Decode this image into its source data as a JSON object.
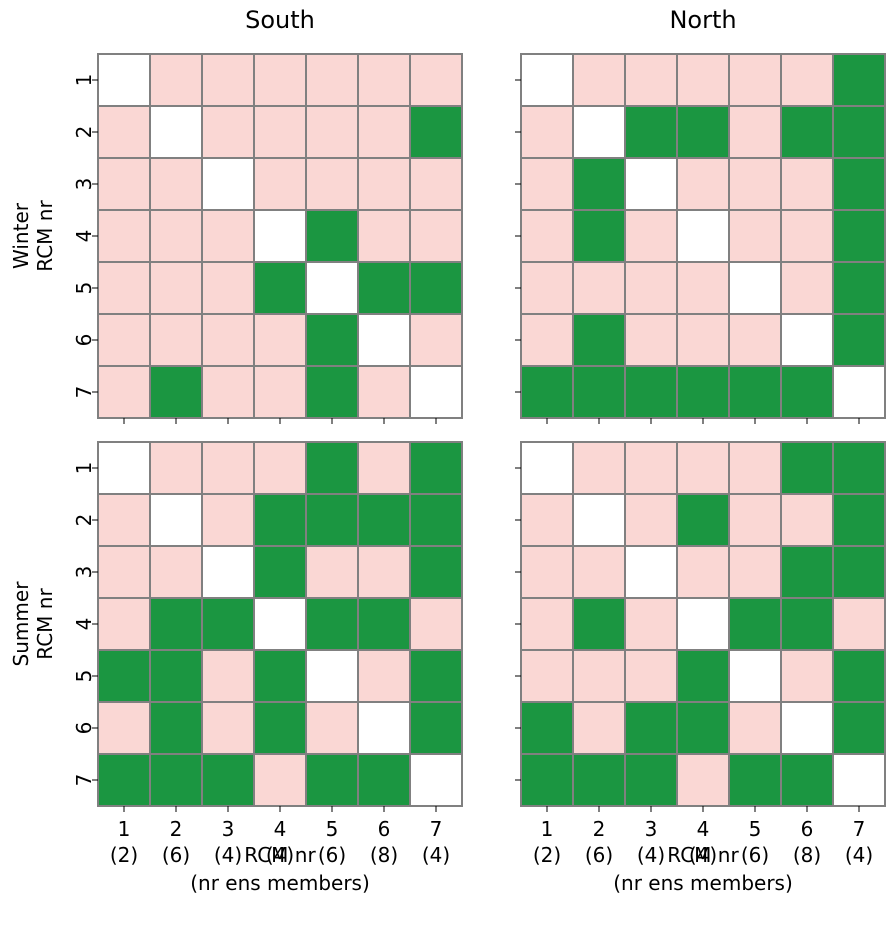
{
  "chart_data": {
    "type": "heatmap",
    "row_labels": [
      "Winter\nRCM nr",
      "Summer\nRCM nr"
    ],
    "col_titles": [
      "South",
      "North"
    ],
    "x_tick_labels": [
      "1",
      "2",
      "3",
      "4",
      "5",
      "6",
      "7"
    ],
    "x_tick_sublabels": [
      "(2)",
      "(6)",
      "(4)",
      "(4)",
      "(6)",
      "(8)",
      "(4)"
    ],
    "y_tick_labels": [
      "1",
      "2",
      "3",
      "4",
      "5",
      "6",
      "7"
    ],
    "xlabel": "RCM nr\n(nr ens members)",
    "category_colors": {
      "0": "#ffffff",
      "1": "#fad7d4",
      "2": "#1b9641"
    },
    "grid_color": "#808080",
    "panels": [
      {
        "row": "Winter",
        "column": "South",
        "matrix": [
          [
            0,
            1,
            1,
            1,
            1,
            1,
            1
          ],
          [
            1,
            0,
            1,
            1,
            1,
            1,
            2
          ],
          [
            1,
            1,
            0,
            1,
            1,
            1,
            1
          ],
          [
            1,
            1,
            1,
            0,
            2,
            1,
            1
          ],
          [
            1,
            1,
            1,
            2,
            0,
            2,
            2
          ],
          [
            1,
            1,
            1,
            1,
            2,
            0,
            1
          ],
          [
            1,
            2,
            1,
            1,
            2,
            1,
            0
          ]
        ]
      },
      {
        "row": "Winter",
        "column": "North",
        "matrix": [
          [
            0,
            1,
            1,
            1,
            1,
            1,
            2
          ],
          [
            1,
            0,
            2,
            2,
            1,
            2,
            2
          ],
          [
            1,
            2,
            0,
            1,
            1,
            1,
            2
          ],
          [
            1,
            2,
            1,
            0,
            1,
            1,
            2
          ],
          [
            1,
            1,
            1,
            1,
            0,
            1,
            2
          ],
          [
            1,
            2,
            1,
            1,
            1,
            0,
            2
          ],
          [
            2,
            2,
            2,
            2,
            2,
            2,
            0
          ]
        ]
      },
      {
        "row": "Summer",
        "column": "South",
        "matrix": [
          [
            0,
            1,
            1,
            1,
            2,
            1,
            2
          ],
          [
            1,
            0,
            1,
            2,
            2,
            2,
            2
          ],
          [
            1,
            1,
            0,
            2,
            1,
            1,
            2
          ],
          [
            1,
            2,
            2,
            0,
            2,
            2,
            1
          ],
          [
            2,
            2,
            1,
            2,
            0,
            1,
            2
          ],
          [
            1,
            2,
            1,
            2,
            1,
            0,
            2
          ],
          [
            2,
            2,
            2,
            1,
            2,
            2,
            0
          ]
        ]
      },
      {
        "row": "Summer",
        "column": "North",
        "matrix": [
          [
            0,
            1,
            1,
            1,
            1,
            2,
            2
          ],
          [
            1,
            0,
            1,
            2,
            1,
            1,
            2
          ],
          [
            1,
            1,
            0,
            1,
            1,
            2,
            2
          ],
          [
            1,
            2,
            1,
            0,
            2,
            2,
            1
          ],
          [
            1,
            1,
            1,
            2,
            0,
            1,
            2
          ],
          [
            2,
            1,
            2,
            2,
            1,
            0,
            2
          ],
          [
            2,
            2,
            2,
            1,
            2,
            2,
            0
          ]
        ]
      }
    ]
  }
}
